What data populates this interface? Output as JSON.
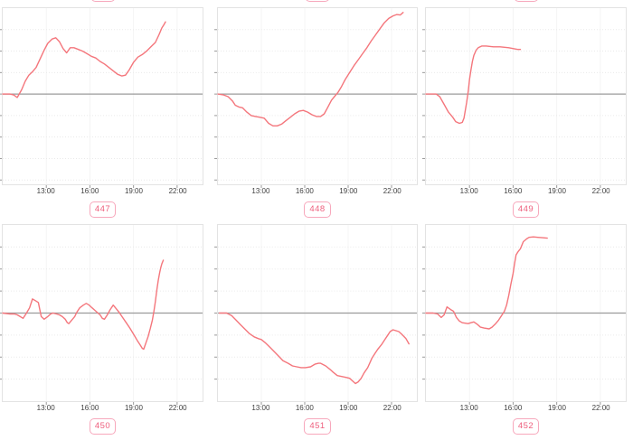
{
  "colors": {
    "line": "#f4767c",
    "zero_line": "#9b9b9b",
    "plot_border": "#e3e3e3",
    "gridline": "#eaeaea",
    "vertical_gridline": "#f4f4f4",
    "axis_tick_mark": "#999999",
    "tick_text": "#3f3f3f",
    "pill_border": "#f7a8bc",
    "pill_text": "#ee5f7d",
    "background": "#ffffff"
  },
  "axis": {
    "x_start_hour": 10,
    "x_end_hour": 23.75,
    "x_tick_labels": [
      "13:00",
      "16:00",
      "19:00",
      "22:00"
    ],
    "x_tick_hours": [
      13,
      16,
      19,
      22
    ],
    "y_axis_labels_visible": false,
    "grid_step_value": 0.25,
    "legend": "none",
    "title": "none"
  },
  "chart_data": [
    {
      "type": "line",
      "label": "447",
      "x_unit": "time of day (hours)",
      "y_unit": "unlabeled axis, normalized units (0 = gray baseline)",
      "ylim": [
        -1.05,
        1.0
      ],
      "points": [
        [
          10.0,
          0
        ],
        [
          10.5,
          0
        ],
        [
          10.75,
          -0.01
        ],
        [
          11.0,
          -0.04
        ],
        [
          11.3,
          0.05
        ],
        [
          11.55,
          0.15
        ],
        [
          11.8,
          0.22
        ],
        [
          12.05,
          0.26
        ],
        [
          12.3,
          0.31
        ],
        [
          12.6,
          0.42
        ],
        [
          12.85,
          0.51
        ],
        [
          13.1,
          0.59
        ],
        [
          13.4,
          0.64
        ],
        [
          13.65,
          0.655
        ],
        [
          13.9,
          0.61
        ],
        [
          14.15,
          0.53
        ],
        [
          14.4,
          0.48
        ],
        [
          14.65,
          0.54
        ],
        [
          14.9,
          0.54
        ],
        [
          15.2,
          0.52
        ],
        [
          15.5,
          0.5
        ],
        [
          15.8,
          0.47
        ],
        [
          16.1,
          0.44
        ],
        [
          16.4,
          0.42
        ],
        [
          16.7,
          0.38
        ],
        [
          17.0,
          0.35
        ],
        [
          17.3,
          0.31
        ],
        [
          17.6,
          0.27
        ],
        [
          17.9,
          0.23
        ],
        [
          18.2,
          0.21
        ],
        [
          18.45,
          0.22
        ],
        [
          18.7,
          0.28
        ],
        [
          19.0,
          0.37
        ],
        [
          19.3,
          0.43
        ],
        [
          19.6,
          0.46
        ],
        [
          19.9,
          0.5
        ],
        [
          20.2,
          0.55
        ],
        [
          20.5,
          0.6
        ],
        [
          20.75,
          0.69
        ],
        [
          20.95,
          0.77
        ],
        [
          21.1,
          0.81
        ],
        [
          21.2,
          0.84
        ]
      ]
    },
    {
      "type": "line",
      "label": "448",
      "x_unit": "time of day (hours)",
      "y_unit": "unlabeled axis, normalized units (0 = gray baseline)",
      "ylim": [
        -1.05,
        1.0
      ],
      "points": [
        [
          10.0,
          0
        ],
        [
          10.4,
          -0.01
        ],
        [
          10.7,
          -0.03
        ],
        [
          11.0,
          -0.08
        ],
        [
          11.2,
          -0.13
        ],
        [
          11.45,
          -0.15
        ],
        [
          11.7,
          -0.16
        ],
        [
          12.0,
          -0.21
        ],
        [
          12.3,
          -0.25
        ],
        [
          12.6,
          -0.26
        ],
        [
          12.9,
          -0.27
        ],
        [
          13.2,
          -0.28
        ],
        [
          13.5,
          -0.34
        ],
        [
          13.8,
          -0.37
        ],
        [
          14.1,
          -0.37
        ],
        [
          14.4,
          -0.35
        ],
        [
          14.7,
          -0.31
        ],
        [
          15.0,
          -0.27
        ],
        [
          15.3,
          -0.23
        ],
        [
          15.6,
          -0.2
        ],
        [
          15.9,
          -0.19
        ],
        [
          16.2,
          -0.21
        ],
        [
          16.5,
          -0.24
        ],
        [
          16.8,
          -0.26
        ],
        [
          17.1,
          -0.26
        ],
        [
          17.35,
          -0.23
        ],
        [
          17.6,
          -0.15
        ],
        [
          17.85,
          -0.07
        ],
        [
          18.1,
          -0.02
        ],
        [
          18.3,
          0.02
        ],
        [
          18.55,
          0.09
        ],
        [
          18.8,
          0.17
        ],
        [
          19.1,
          0.25
        ],
        [
          19.4,
          0.33
        ],
        [
          19.7,
          0.4
        ],
        [
          20.0,
          0.47
        ],
        [
          20.3,
          0.54
        ],
        [
          20.6,
          0.62
        ],
        [
          20.9,
          0.69
        ],
        [
          21.2,
          0.76
        ],
        [
          21.5,
          0.83
        ],
        [
          21.8,
          0.88
        ],
        [
          22.1,
          0.91
        ],
        [
          22.35,
          0.925
        ],
        [
          22.6,
          0.92
        ],
        [
          22.8,
          0.95
        ]
      ]
    },
    {
      "type": "line",
      "label": "449",
      "x_unit": "time of day (hours)",
      "y_unit": "unlabeled axis, normalized units (0 = gray baseline)",
      "ylim": [
        -1.05,
        1.0
      ],
      "points": [
        [
          10.0,
          0
        ],
        [
          10.7,
          0
        ],
        [
          10.95,
          -0.03
        ],
        [
          11.25,
          -0.12
        ],
        [
          11.55,
          -0.21
        ],
        [
          11.85,
          -0.27
        ],
        [
          12.05,
          -0.32
        ],
        [
          12.3,
          -0.34
        ],
        [
          12.5,
          -0.33
        ],
        [
          12.62,
          -0.28
        ],
        [
          12.8,
          -0.1
        ],
        [
          12.92,
          0.04
        ],
        [
          13.0,
          0.17
        ],
        [
          13.1,
          0.28
        ],
        [
          13.2,
          0.38
        ],
        [
          13.3,
          0.45
        ],
        [
          13.45,
          0.51
        ],
        [
          13.6,
          0.54
        ],
        [
          13.85,
          0.56
        ],
        [
          14.15,
          0.56
        ],
        [
          14.65,
          0.55
        ],
        [
          15.1,
          0.55
        ],
        [
          15.7,
          0.54
        ],
        [
          16.3,
          0.52
        ],
        [
          16.5,
          0.52
        ]
      ]
    },
    {
      "type": "line",
      "label": "450",
      "x_unit": "time of day (hours)",
      "y_unit": "unlabeled axis, normalized units (0 = gray baseline)",
      "ylim": [
        -1.0,
        1.0
      ],
      "points": [
        [
          10.0,
          0
        ],
        [
          10.5,
          -0.01
        ],
        [
          10.8,
          -0.01
        ],
        [
          11.0,
          -0.02
        ],
        [
          11.2,
          -0.04
        ],
        [
          11.4,
          -0.06
        ],
        [
          11.6,
          -0.01
        ],
        [
          11.85,
          0.06
        ],
        [
          12.05,
          0.16
        ],
        [
          12.25,
          0.14
        ],
        [
          12.45,
          0.12
        ],
        [
          12.65,
          -0.04
        ],
        [
          12.85,
          -0.07
        ],
        [
          13.1,
          -0.04
        ],
        [
          13.3,
          -0.01
        ],
        [
          13.45,
          0.0
        ],
        [
          13.7,
          -0.01
        ],
        [
          13.9,
          -0.02
        ],
        [
          14.1,
          -0.04
        ],
        [
          14.3,
          -0.07
        ],
        [
          14.45,
          -0.11
        ],
        [
          14.55,
          -0.12
        ],
        [
          14.7,
          -0.09
        ],
        [
          14.95,
          -0.04
        ],
        [
          15.1,
          0.01
        ],
        [
          15.3,
          0.06
        ],
        [
          15.55,
          0.09
        ],
        [
          15.75,
          0.11
        ],
        [
          15.95,
          0.09
        ],
        [
          16.15,
          0.06
        ],
        [
          16.35,
          0.03
        ],
        [
          16.55,
          0.0
        ],
        [
          16.7,
          -0.02
        ],
        [
          16.85,
          -0.06
        ],
        [
          17.0,
          -0.07
        ],
        [
          17.2,
          -0.02
        ],
        [
          17.4,
          0.04
        ],
        [
          17.6,
          0.09
        ],
        [
          17.8,
          0.05
        ],
        [
          18.0,
          0.01
        ],
        [
          18.25,
          -0.05
        ],
        [
          18.5,
          -0.11
        ],
        [
          18.75,
          -0.17
        ],
        [
          19.0,
          -0.24
        ],
        [
          19.25,
          -0.31
        ],
        [
          19.45,
          -0.36
        ],
        [
          19.6,
          -0.4
        ],
        [
          19.7,
          -0.41
        ],
        [
          19.85,
          -0.34
        ],
        [
          20.0,
          -0.27
        ],
        [
          20.15,
          -0.18
        ],
        [
          20.3,
          -0.08
        ],
        [
          20.4,
          0.02
        ],
        [
          20.5,
          0.13
        ],
        [
          20.6,
          0.26
        ],
        [
          20.7,
          0.37
        ],
        [
          20.8,
          0.46
        ],
        [
          20.88,
          0.52
        ],
        [
          20.95,
          0.56
        ],
        [
          21.05,
          0.6
        ]
      ]
    },
    {
      "type": "line",
      "label": "451",
      "x_unit": "time of day (hours)",
      "y_unit": "unlabeled axis, normalized units (0 = gray baseline)",
      "ylim": [
        -1.0,
        1.0
      ],
      "points": [
        [
          10.1,
          0
        ],
        [
          10.6,
          0
        ],
        [
          10.95,
          -0.03
        ],
        [
          11.25,
          -0.08
        ],
        [
          11.55,
          -0.13
        ],
        [
          11.85,
          -0.18
        ],
        [
          12.15,
          -0.23
        ],
        [
          12.5,
          -0.27
        ],
        [
          12.8,
          -0.29
        ],
        [
          13.0,
          -0.3
        ],
        [
          13.3,
          -0.34
        ],
        [
          13.6,
          -0.39
        ],
        [
          13.9,
          -0.44
        ],
        [
          14.2,
          -0.49
        ],
        [
          14.5,
          -0.54
        ],
        [
          14.85,
          -0.57
        ],
        [
          15.15,
          -0.6
        ],
        [
          15.45,
          -0.61
        ],
        [
          15.75,
          -0.62
        ],
        [
          16.05,
          -0.62
        ],
        [
          16.4,
          -0.61
        ],
        [
          16.7,
          -0.58
        ],
        [
          16.95,
          -0.57
        ],
        [
          17.1,
          -0.57
        ],
        [
          17.45,
          -0.6
        ],
        [
          17.75,
          -0.64
        ],
        [
          17.95,
          -0.67
        ],
        [
          18.25,
          -0.71
        ],
        [
          18.55,
          -0.72
        ],
        [
          18.85,
          -0.73
        ],
        [
          19.1,
          -0.74
        ],
        [
          19.3,
          -0.77
        ],
        [
          19.5,
          -0.8
        ],
        [
          19.7,
          -0.78
        ],
        [
          19.9,
          -0.74
        ],
        [
          20.1,
          -0.68
        ],
        [
          20.35,
          -0.62
        ],
        [
          20.65,
          -0.51
        ],
        [
          20.85,
          -0.46
        ],
        [
          21.05,
          -0.41
        ],
        [
          21.3,
          -0.36
        ],
        [
          21.5,
          -0.31
        ],
        [
          21.7,
          -0.26
        ],
        [
          21.9,
          -0.21
        ],
        [
          22.1,
          -0.19
        ],
        [
          22.3,
          -0.2
        ],
        [
          22.5,
          -0.21
        ],
        [
          22.7,
          -0.24
        ],
        [
          23.0,
          -0.29
        ],
        [
          23.2,
          -0.35
        ]
      ]
    },
    {
      "type": "line",
      "label": "452",
      "x_unit": "time of day (hours)",
      "y_unit": "unlabeled axis, normalized units (0 = gray baseline)",
      "ylim": [
        -1.0,
        1.0
      ],
      "points": [
        [
          10.0,
          0
        ],
        [
          10.5,
          0
        ],
        [
          10.8,
          -0.01
        ],
        [
          11.05,
          -0.05
        ],
        [
          11.25,
          -0.02
        ],
        [
          11.45,
          0.07
        ],
        [
          11.7,
          0.04
        ],
        [
          11.9,
          0.02
        ],
        [
          12.1,
          -0.05
        ],
        [
          12.3,
          -0.09
        ],
        [
          12.5,
          -0.11
        ],
        [
          12.9,
          -0.12
        ],
        [
          13.1,
          -0.11
        ],
        [
          13.3,
          -0.1
        ],
        [
          13.55,
          -0.13
        ],
        [
          13.75,
          -0.16
        ],
        [
          14.0,
          -0.17
        ],
        [
          14.35,
          -0.18
        ],
        [
          14.55,
          -0.16
        ],
        [
          14.8,
          -0.12
        ],
        [
          15.0,
          -0.08
        ],
        [
          15.2,
          -0.03
        ],
        [
          15.4,
          0.02
        ],
        [
          15.55,
          0.09
        ],
        [
          15.7,
          0.2
        ],
        [
          15.85,
          0.33
        ],
        [
          16.0,
          0.45
        ],
        [
          16.1,
          0.56
        ],
        [
          16.2,
          0.66
        ],
        [
          16.35,
          0.7
        ],
        [
          16.5,
          0.73
        ],
        [
          16.7,
          0.81
        ],
        [
          16.95,
          0.845
        ],
        [
          17.1,
          0.86
        ],
        [
          17.4,
          0.865
        ],
        [
          17.7,
          0.86
        ],
        [
          18.0,
          0.855
        ],
        [
          18.35,
          0.85
        ]
      ]
    }
  ]
}
